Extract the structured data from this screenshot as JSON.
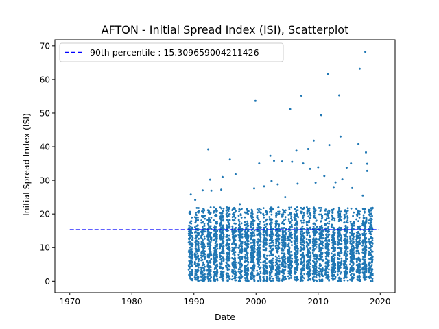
{
  "chart_data": {
    "type": "scatter",
    "title": "AFTON - Initial Spread Index (ISI), Scatterplot",
    "xlabel": "Date",
    "ylabel": "Initial Spread Index (ISI)",
    "xlim": [
      1967.6,
      2022.4
    ],
    "ylim": [
      -3.4,
      71.8
    ],
    "x_ticks": [
      1970,
      1980,
      1990,
      2000,
      2010,
      2020
    ],
    "y_ticks": [
      0,
      10,
      20,
      30,
      40,
      50,
      60,
      70
    ],
    "legend_position": "top-left",
    "grid": false,
    "series": [
      {
        "kind": "points",
        "color": "#1f77b4",
        "seasons": [
          1989,
          1990,
          1991,
          1992,
          1993,
          1994,
          1995,
          1996,
          1997,
          1998,
          1999,
          2000,
          2001,
          2002,
          2003,
          2004,
          2005,
          2006,
          2007,
          2008,
          2009,
          2010,
          2011,
          2012,
          2013,
          2014,
          2015,
          2016,
          2017,
          2018
        ],
        "dense_band_max": 16,
        "outliers": [
          [
            1989.5,
            25.8
          ],
          [
            1990.2,
            24.2
          ],
          [
            1991.4,
            27.0
          ],
          [
            1992.3,
            39.2
          ],
          [
            1992.6,
            30.2
          ],
          [
            1992.8,
            26.9
          ],
          [
            1994.4,
            27.2
          ],
          [
            1994.6,
            31.0
          ],
          [
            1995.8,
            36.2
          ],
          [
            1996.7,
            31.8
          ],
          [
            1997.4,
            22.9
          ],
          [
            1998.6,
            20.4
          ],
          [
            1999.7,
            27.6
          ],
          [
            1999.9,
            53.6
          ],
          [
            2000.5,
            35.0
          ],
          [
            2001.3,
            28.2
          ],
          [
            2002.3,
            37.3
          ],
          [
            2002.5,
            29.8
          ],
          [
            2002.9,
            35.8
          ],
          [
            2003.5,
            28.8
          ],
          [
            2004.2,
            35.6
          ],
          [
            2004.7,
            25.0
          ],
          [
            2005.5,
            51.2
          ],
          [
            2005.8,
            35.5
          ],
          [
            2006.5,
            38.8
          ],
          [
            2006.7,
            29.0
          ],
          [
            2007.3,
            55.2
          ],
          [
            2007.6,
            35.0
          ],
          [
            2008.4,
            39.3
          ],
          [
            2008.7,
            33.4
          ],
          [
            2009.3,
            41.8
          ],
          [
            2009.6,
            29.3
          ],
          [
            2010.0,
            33.9
          ],
          [
            2010.5,
            49.4
          ],
          [
            2011.0,
            31.3
          ],
          [
            2011.6,
            61.6
          ],
          [
            2011.8,
            40.5
          ],
          [
            2012.5,
            27.8
          ],
          [
            2012.8,
            29.4
          ],
          [
            2013.4,
            55.3
          ],
          [
            2013.6,
            43.0
          ],
          [
            2013.9,
            30.3
          ],
          [
            2014.6,
            33.8
          ],
          [
            2015.3,
            35.0
          ],
          [
            2015.5,
            27.7
          ],
          [
            2016.5,
            40.8
          ],
          [
            2016.7,
            63.2
          ],
          [
            2017.2,
            25.5
          ],
          [
            2017.6,
            68.2
          ],
          [
            2017.7,
            38.3
          ],
          [
            2017.9,
            34.9
          ],
          [
            2017.9,
            32.8
          ],
          [
            2018.3,
            19.8
          ]
        ]
      }
    ],
    "reference_line": {
      "label": "90th percentile : 15.309659004211426",
      "value": 15.309659004211426,
      "x_range": [
        1970,
        2019.8
      ],
      "color": "#0000ff",
      "style": "dashed"
    }
  }
}
